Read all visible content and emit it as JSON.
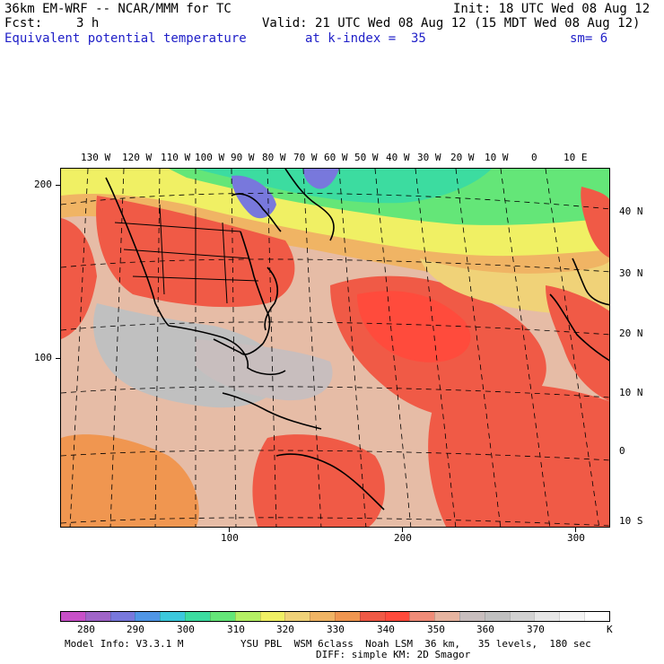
{
  "header": {
    "model": "36km EM-WRF -- NCAR/MMM for TC",
    "init": "Init: 18 UTC Wed 08 Aug 12",
    "fcst_label": "Fcst:",
    "fcst_value": "3 h",
    "valid": "Valid: 21 UTC Wed 08 Aug 12 (15 MDT Wed 08 Aug 12)",
    "field": "Equivalent potential temperature",
    "level": "at k-index =  35",
    "smoothing": "sm= 6"
  },
  "map": {
    "top_lon_labels": [
      "130 W",
      "120 W",
      "110 W",
      "100 W",
      "90 W",
      "80 W",
      "70 W",
      "60 W",
      "50 W",
      "40 W",
      "30 W",
      "20 W",
      "10 W",
      "0",
      "10 E"
    ],
    "right_lat_labels": [
      "40 N",
      "30 N",
      "20 N",
      "10 N",
      "0",
      "10 S"
    ],
    "left_grid_labels": [
      "200",
      "100"
    ],
    "bottom_grid_labels": [
      "100",
      "200",
      "300"
    ]
  },
  "colorbar": {
    "colors": [
      "#c850c8",
      "#a064c8",
      "#7878dc",
      "#5096e6",
      "#3cc8dc",
      "#3cdca0",
      "#64e678",
      "#b4f064",
      "#f0f064",
      "#f0d278",
      "#f0b464",
      "#f09650",
      "#f05a46",
      "#ff4b3c",
      "#f08c78",
      "#e6b4a0",
      "#c8bebe",
      "#c0c0c0",
      "#d2d2d2",
      "#e6e6e6",
      "#f5f5f5",
      "#ffffff"
    ],
    "tick_labels": [
      "280",
      "290",
      "300",
      "310",
      "320",
      "330",
      "340",
      "350",
      "360",
      "370",
      "K"
    ]
  },
  "footer": {
    "model_info": "Model Info: V3.3.1 M",
    "physics": "YSU PBL  WSM 6class  Noah LSM  36 km,   35 levels,  180 sec",
    "diffusion": "DIFF: simple KM: 2D Smagor"
  }
}
